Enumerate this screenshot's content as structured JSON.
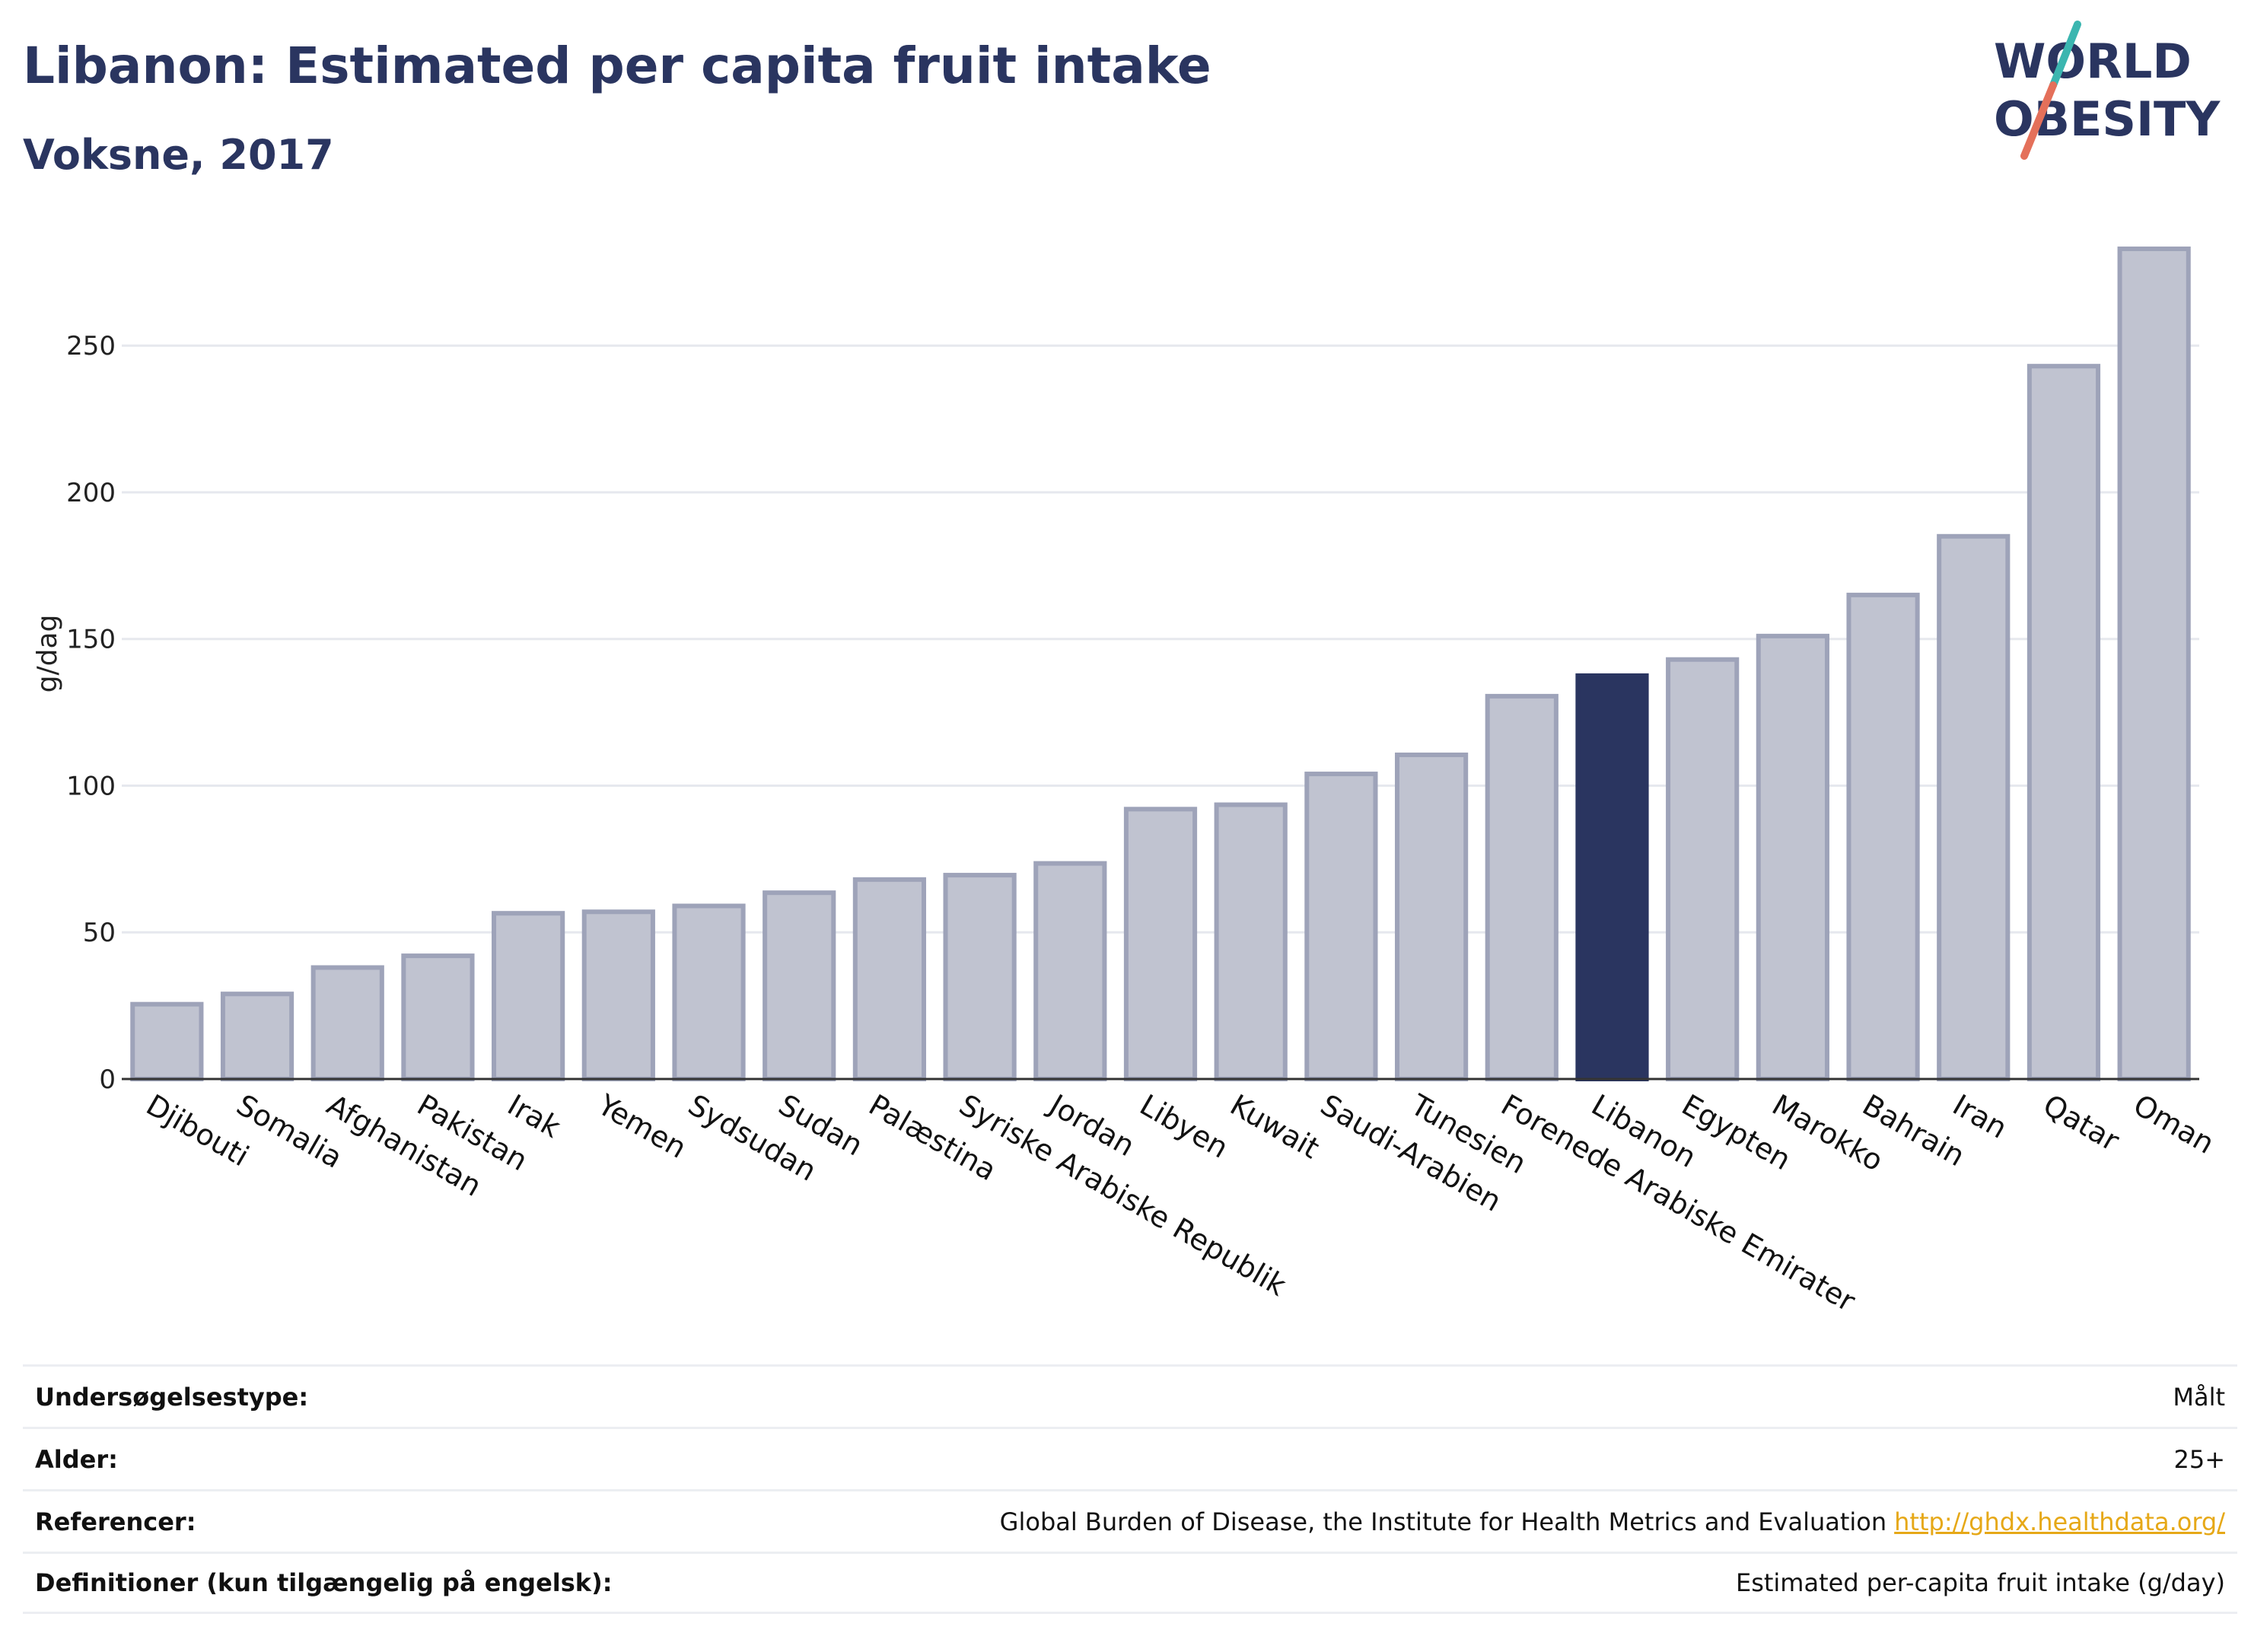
{
  "header": {
    "title": "Libanon: Estimated per capita fruit intake",
    "subtitle": "Voksne, 2017"
  },
  "logo": {
    "line1": "WORLD",
    "line2": "OBESITY",
    "colors": {
      "text": "#2a3560",
      "slash_top": "#3bb6b0",
      "slash_bottom": "#e4705a"
    }
  },
  "chart_data": {
    "type": "bar",
    "ylabel": "g/dag",
    "ylim": [
      0,
      290
    ],
    "yticks": [
      0,
      50,
      100,
      150,
      200,
      250
    ],
    "grid": true,
    "highlight": "Libanon",
    "colors": {
      "bar": "#c0c3d0",
      "bar_edge": "#9ea3b9",
      "highlight": "#2a3560",
      "grid": "#e6e8ee",
      "axis": "#333333"
    },
    "categories": [
      "Djibouti",
      "Somalia",
      "Afghanistan",
      "Pakistan",
      "Irak",
      "Yemen",
      "Sydsudan",
      "Sudan",
      "Palæstina",
      "Syriske Arabiske Republik",
      "Jordan",
      "Libyen",
      "Kuwait",
      "Saudi-Arabien",
      "Tunesien",
      "Forenede Arabiske Emirater",
      "Libanon",
      "Egypten",
      "Marokko",
      "Bahrain",
      "Iran",
      "Qatar",
      "Oman"
    ],
    "values": [
      25.5,
      29,
      38,
      42,
      56.5,
      57,
      59,
      63.5,
      68,
      69.5,
      73.5,
      92,
      93.5,
      104,
      110.5,
      130.5,
      137.5,
      143,
      151,
      165,
      185,
      243,
      283
    ]
  },
  "info": {
    "rows": [
      {
        "label": "Undersøgelsestype:",
        "value": "Målt",
        "link": ""
      },
      {
        "label": "Alder:",
        "value": "25+",
        "link": ""
      },
      {
        "label": "Referencer:",
        "value": "Global Burden of Disease, the Institute for Health Metrics and Evaluation",
        "link": "http://ghdx.healthdata.org/"
      },
      {
        "label": "Definitioner (kun tilgængelig på engelsk):",
        "value": "Estimated per-capita fruit intake (g/day)",
        "link": ""
      }
    ]
  }
}
